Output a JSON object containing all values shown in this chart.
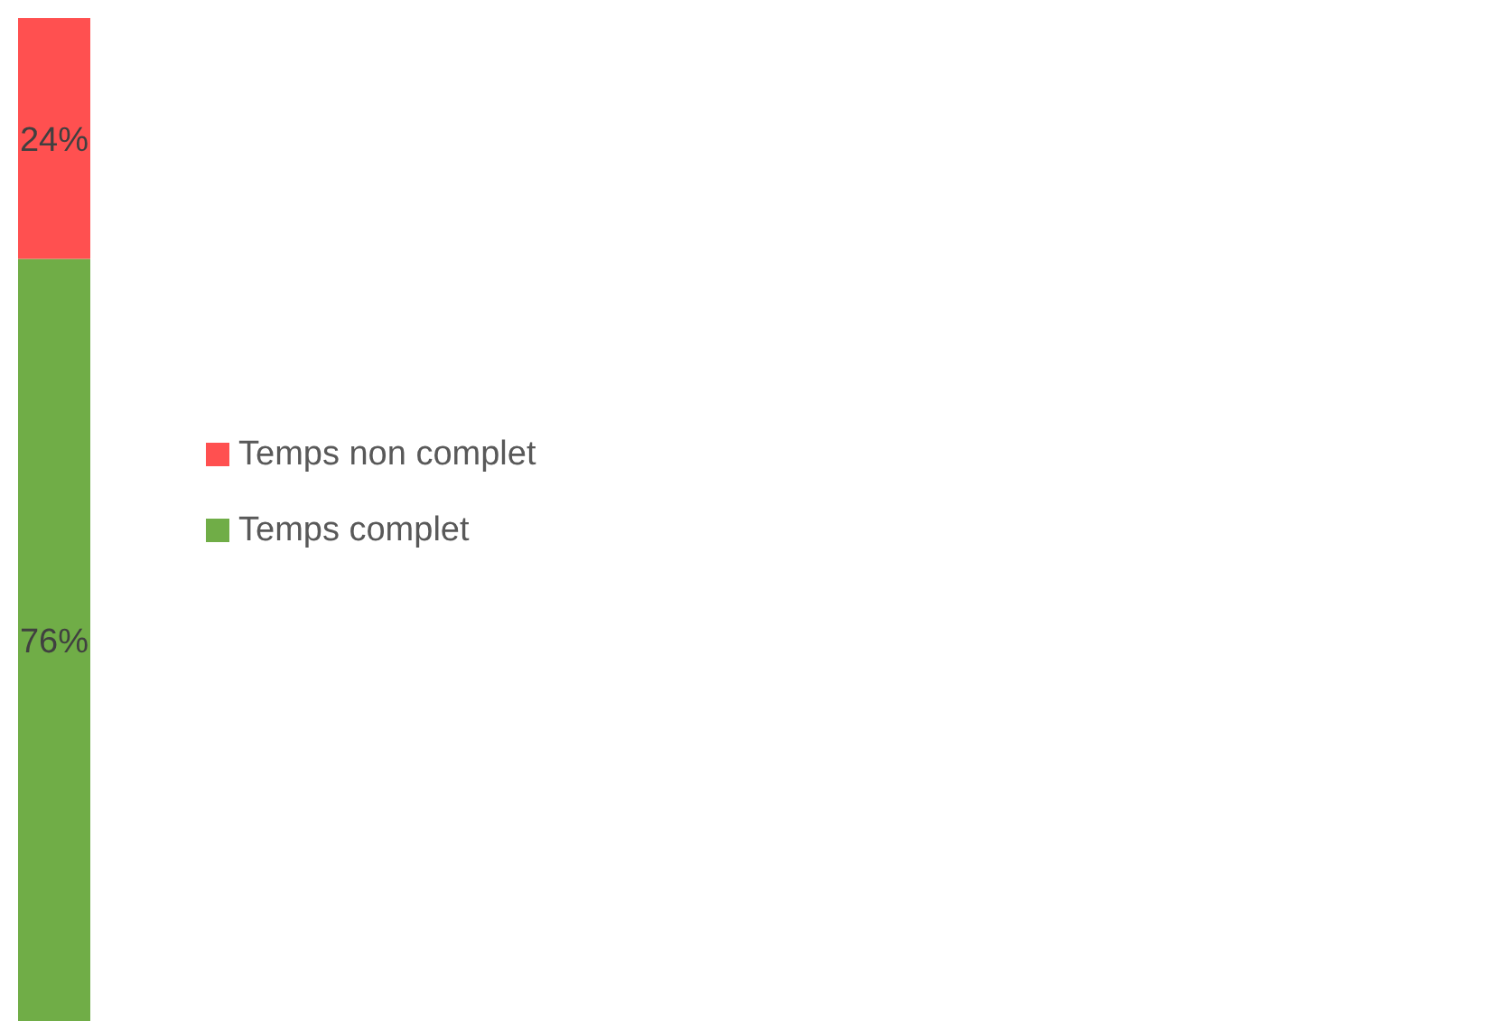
{
  "chart_data": {
    "type": "bar",
    "stacked": true,
    "categories": [
      null
    ],
    "legend": "right",
    "series": [
      {
        "name": "Temps complet",
        "color": "#70ad47",
        "values": [
          76
        ],
        "value_labels": [
          "76%"
        ]
      },
      {
        "name": "Temps non complet",
        "color": "#ff5050",
        "values": [
          24
        ],
        "value_labels": [
          "24%"
        ]
      }
    ]
  }
}
